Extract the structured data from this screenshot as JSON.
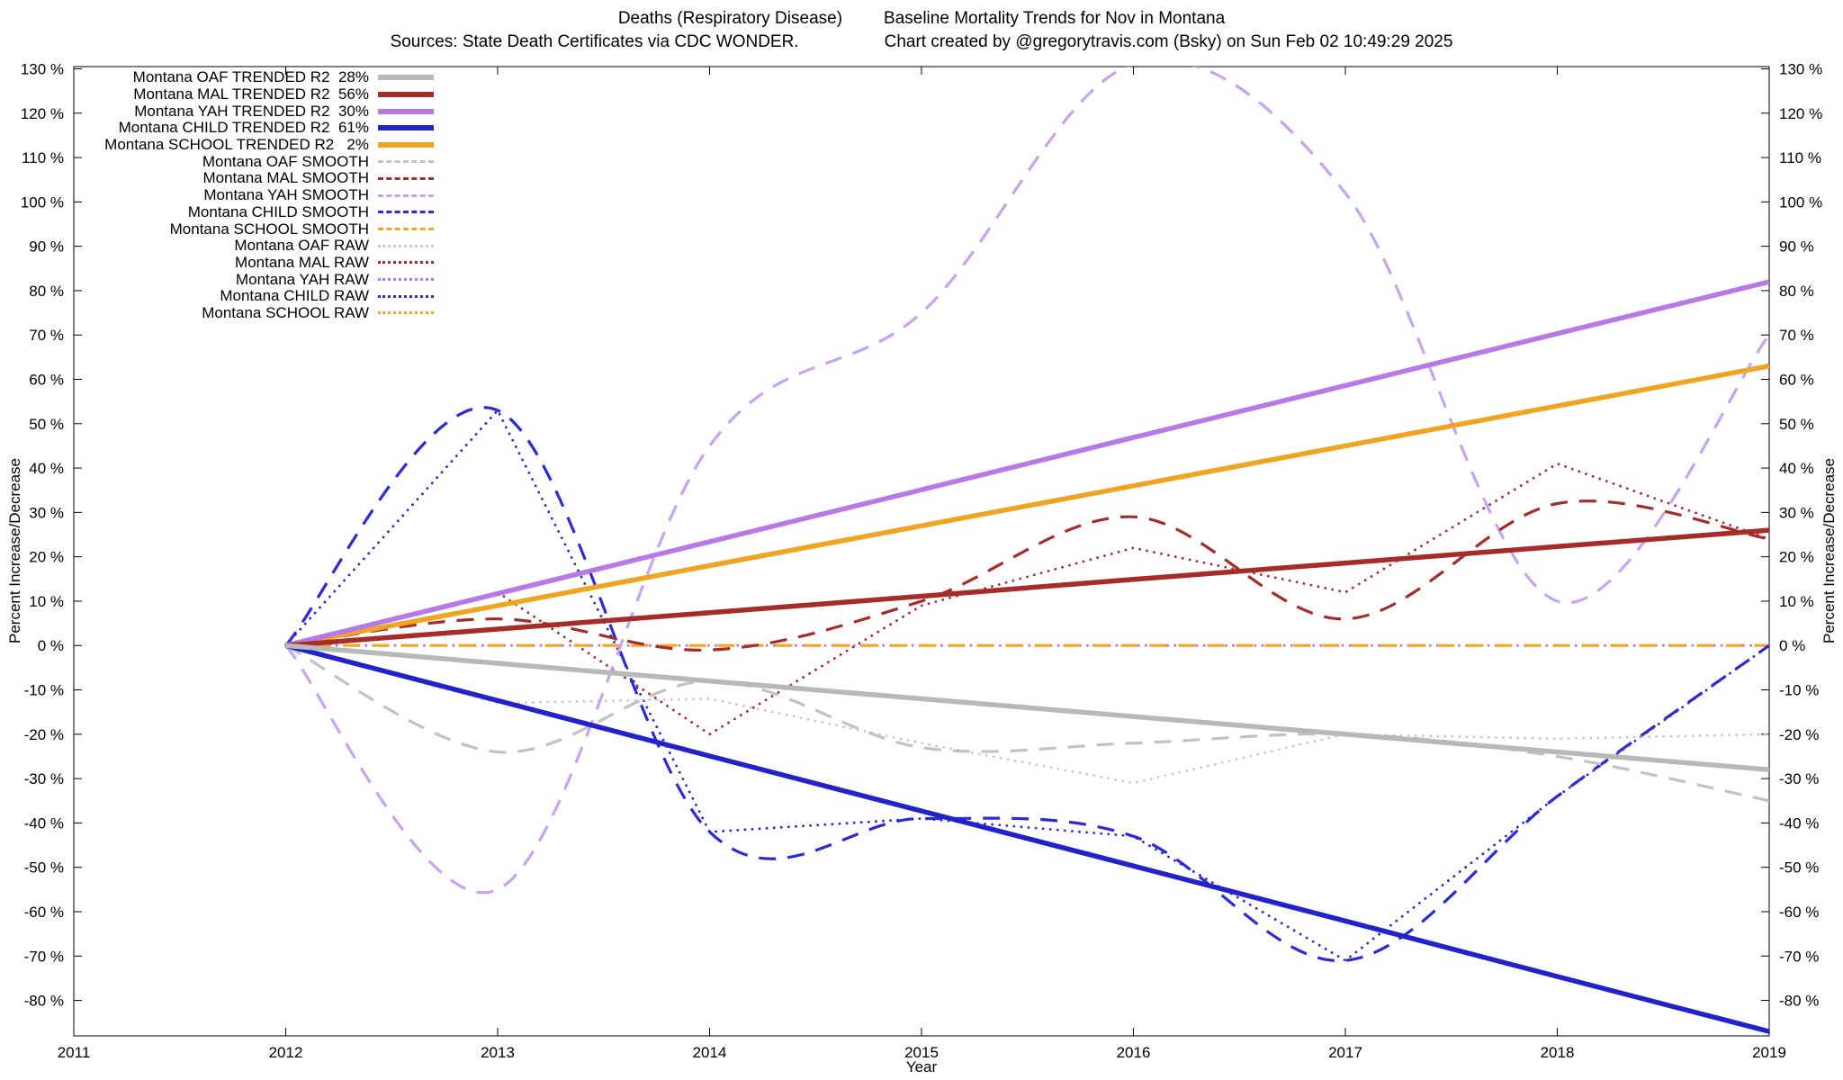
{
  "header": {
    "title_left": "Deaths (Respiratory Disease)",
    "title_right": "Baseline Mortality Trends for Nov in Montana",
    "sources": "Sources: State Death Certificates via CDC WONDER.",
    "credit": "Chart created by @gregorytravis.com (Bsky) on Sun Feb 02 10:49:29 2025"
  },
  "chart_data": {
    "type": "line",
    "title": "Deaths (Respiratory Disease)  Baseline Mortality Trends for Nov in Montana",
    "subtitle": "Sources: State Death Certificates via CDC WONDER.  Chart created by @gregorytravis.com (Bsky) on Sun Feb 02 10:49:29 2025",
    "xlabel": "Year",
    "ylabel_left": "Percent Increase/Decrease",
    "ylabel_right": "Percent Increase/Decrease",
    "xlim": [
      2011,
      2019
    ],
    "ylim": [
      -88,
      130.5
    ],
    "xticks": [
      2011,
      2012,
      2013,
      2014,
      2015,
      2016,
      2017,
      2018,
      2019
    ],
    "yticks": [
      -80,
      -70,
      -60,
      -50,
      -40,
      -30,
      -20,
      -10,
      0,
      10,
      20,
      30,
      40,
      50,
      60,
      70,
      80,
      90,
      100,
      110,
      120,
      130
    ],
    "ytick_suffix": " %",
    "grid": false,
    "legend_position": "top-left",
    "x": [
      2012,
      2013,
      2014,
      2015,
      2016,
      2017,
      2018,
      2019
    ],
    "series": [
      {
        "name": "Montana OAF TRENDED R2  28%",
        "group": "trended",
        "style": "solid",
        "curve": false,
        "color": "#b8b8b8",
        "values": [
          0,
          -4,
          -8,
          -12,
          -16,
          -20,
          -24,
          -28
        ]
      },
      {
        "name": "Montana MAL TRENDED R2  56%",
        "group": "trended",
        "style": "solid",
        "curve": false,
        "color": "#a62c2a",
        "values": [
          0,
          3.7,
          7.4,
          11.1,
          14.9,
          18.6,
          22.3,
          26
        ]
      },
      {
        "name": "Montana YAH TRENDED R2  30%",
        "group": "trended",
        "style": "solid",
        "curve": false,
        "color": "#b879e8",
        "values": [
          0,
          11.7,
          23.4,
          35.1,
          46.9,
          58.6,
          70.3,
          82
        ]
      },
      {
        "name": "Montana CHILD TRENDED R2  61%",
        "group": "trended",
        "style": "solid",
        "curve": false,
        "color": "#2222cc",
        "values": [
          0,
          -12.4,
          -24.9,
          -37.3,
          -49.7,
          -62.1,
          -74.6,
          -87
        ]
      },
      {
        "name": "Montana SCHOOL TRENDED R2   2%",
        "group": "trended",
        "style": "solid",
        "curve": false,
        "color": "#f0a522",
        "values": [
          0,
          9,
          18,
          27,
          36,
          45,
          54,
          63
        ]
      },
      {
        "name": "Montana OAF SMOOTH",
        "group": "smooth",
        "style": "dashed",
        "curve": true,
        "color": "#c2c2c2",
        "values": [
          0,
          -24,
          -8,
          -23,
          -22,
          -20,
          -25,
          -35
        ]
      },
      {
        "name": "Montana MAL SMOOTH",
        "group": "smooth",
        "style": "dashed",
        "curve": true,
        "color": "#a62c2a",
        "values": [
          0,
          6,
          -1,
          10,
          29,
          6,
          32,
          24
        ]
      },
      {
        "name": "Montana YAH SMOOTH",
        "group": "smooth",
        "style": "dashed",
        "curve": true,
        "color": "#c9a2f0",
        "values": [
          0,
          -55,
          45,
          75,
          131,
          102,
          10,
          70
        ]
      },
      {
        "name": "Montana CHILD SMOOTH",
        "group": "smooth",
        "style": "dashed",
        "curve": true,
        "color": "#2a2ad6",
        "values": [
          0,
          53,
          -42,
          -39,
          -43,
          -71,
          -34,
          0
        ]
      },
      {
        "name": "Montana SCHOOL SMOOTH",
        "group": "smooth",
        "style": "dashed",
        "curve": true,
        "color": "#f5a623",
        "values": [
          0,
          0,
          0,
          0,
          0,
          0,
          0,
          0
        ]
      },
      {
        "name": "Montana OAF RAW",
        "group": "raw",
        "style": "dotted",
        "curve": false,
        "color": "#c8c8c8",
        "values": [
          0,
          -13,
          -12,
          -22,
          -31,
          -20,
          -21,
          -20
        ]
      },
      {
        "name": "Montana MAL RAW",
        "group": "raw",
        "style": "dotted",
        "curve": false,
        "color": "#a62c2a",
        "values": [
          0,
          12,
          -20,
          9,
          22,
          12,
          41,
          24
        ]
      },
      {
        "name": "Montana YAH RAW",
        "group": "raw",
        "style": "dotted",
        "curve": false,
        "color": "#b879e8",
        "values": [
          0,
          0,
          0,
          0,
          0,
          0,
          0,
          0
        ]
      },
      {
        "name": "Montana CHILD RAW",
        "group": "raw",
        "style": "dotted",
        "curve": false,
        "color": "#2a2ad6",
        "values": [
          0,
          53,
          -42,
          -39,
          -43,
          -71,
          -34,
          0
        ]
      },
      {
        "name": "Montana SCHOOL RAW",
        "group": "raw",
        "style": "dotted",
        "curve": false,
        "color": "#f5a623",
        "values": [
          0,
          0,
          0,
          0,
          0,
          0,
          0,
          0
        ]
      }
    ]
  }
}
